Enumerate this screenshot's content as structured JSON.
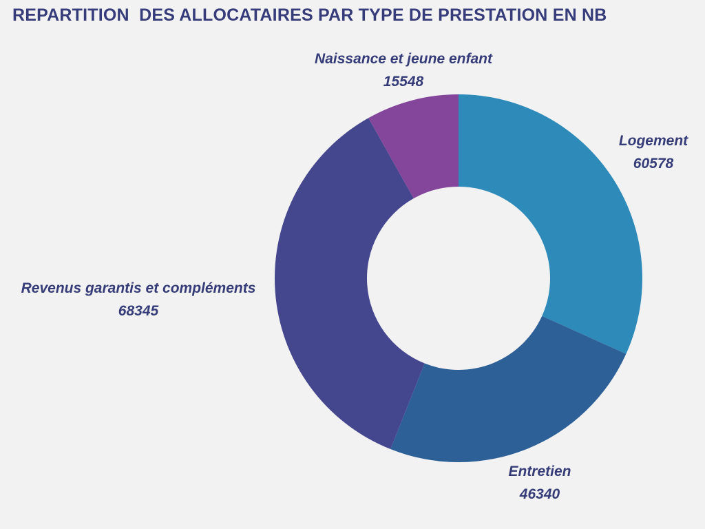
{
  "chart_data": {
    "type": "pie",
    "title": "REPARTITION  DES ALLOCATAIRES PAR TYPE DE PRESTATION EN NB",
    "donut": true,
    "slices": [
      {
        "label": "Logement",
        "value": 60578,
        "color": "#2e8bb9"
      },
      {
        "label": "Entretien",
        "value": 46340,
        "color": "#2e6098"
      },
      {
        "label": "Revenus garantis et compléments",
        "value": 68345,
        "color": "#45478e"
      },
      {
        "label": "Naissance et jeune enfant",
        "value": 15548,
        "color": "#84469a"
      }
    ]
  }
}
